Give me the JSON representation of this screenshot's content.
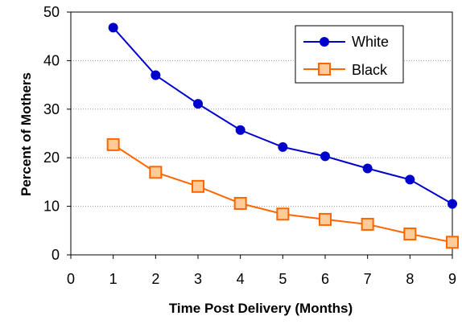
{
  "chart_data": {
    "type": "line",
    "title": "",
    "xlabel": "Time  Post Delivery (Months)",
    "ylabel": "Percent of Mothers",
    "xlim": [
      0,
      9
    ],
    "ylim": [
      0,
      50
    ],
    "x_ticks": [
      0,
      1,
      2,
      3,
      4,
      5,
      6,
      7,
      8,
      9
    ],
    "y_ticks": [
      0,
      10,
      20,
      30,
      40,
      50
    ],
    "x": [
      1,
      2,
      3,
      4,
      5,
      6,
      7,
      8,
      9
    ],
    "grid": "horizontal dotted",
    "legend_position": "top-right",
    "series": [
      {
        "name": "White",
        "color": "#0000cc",
        "marker": "circle",
        "values": [
          46.8,
          37.0,
          31.1,
          25.7,
          22.2,
          20.3,
          17.8,
          15.5,
          10.5
        ]
      },
      {
        "name": "Black",
        "color": "#ff6600",
        "marker": "square",
        "values": [
          22.7,
          17.0,
          14.1,
          10.6,
          8.4,
          7.3,
          6.3,
          4.3,
          2.6
        ]
      }
    ]
  }
}
